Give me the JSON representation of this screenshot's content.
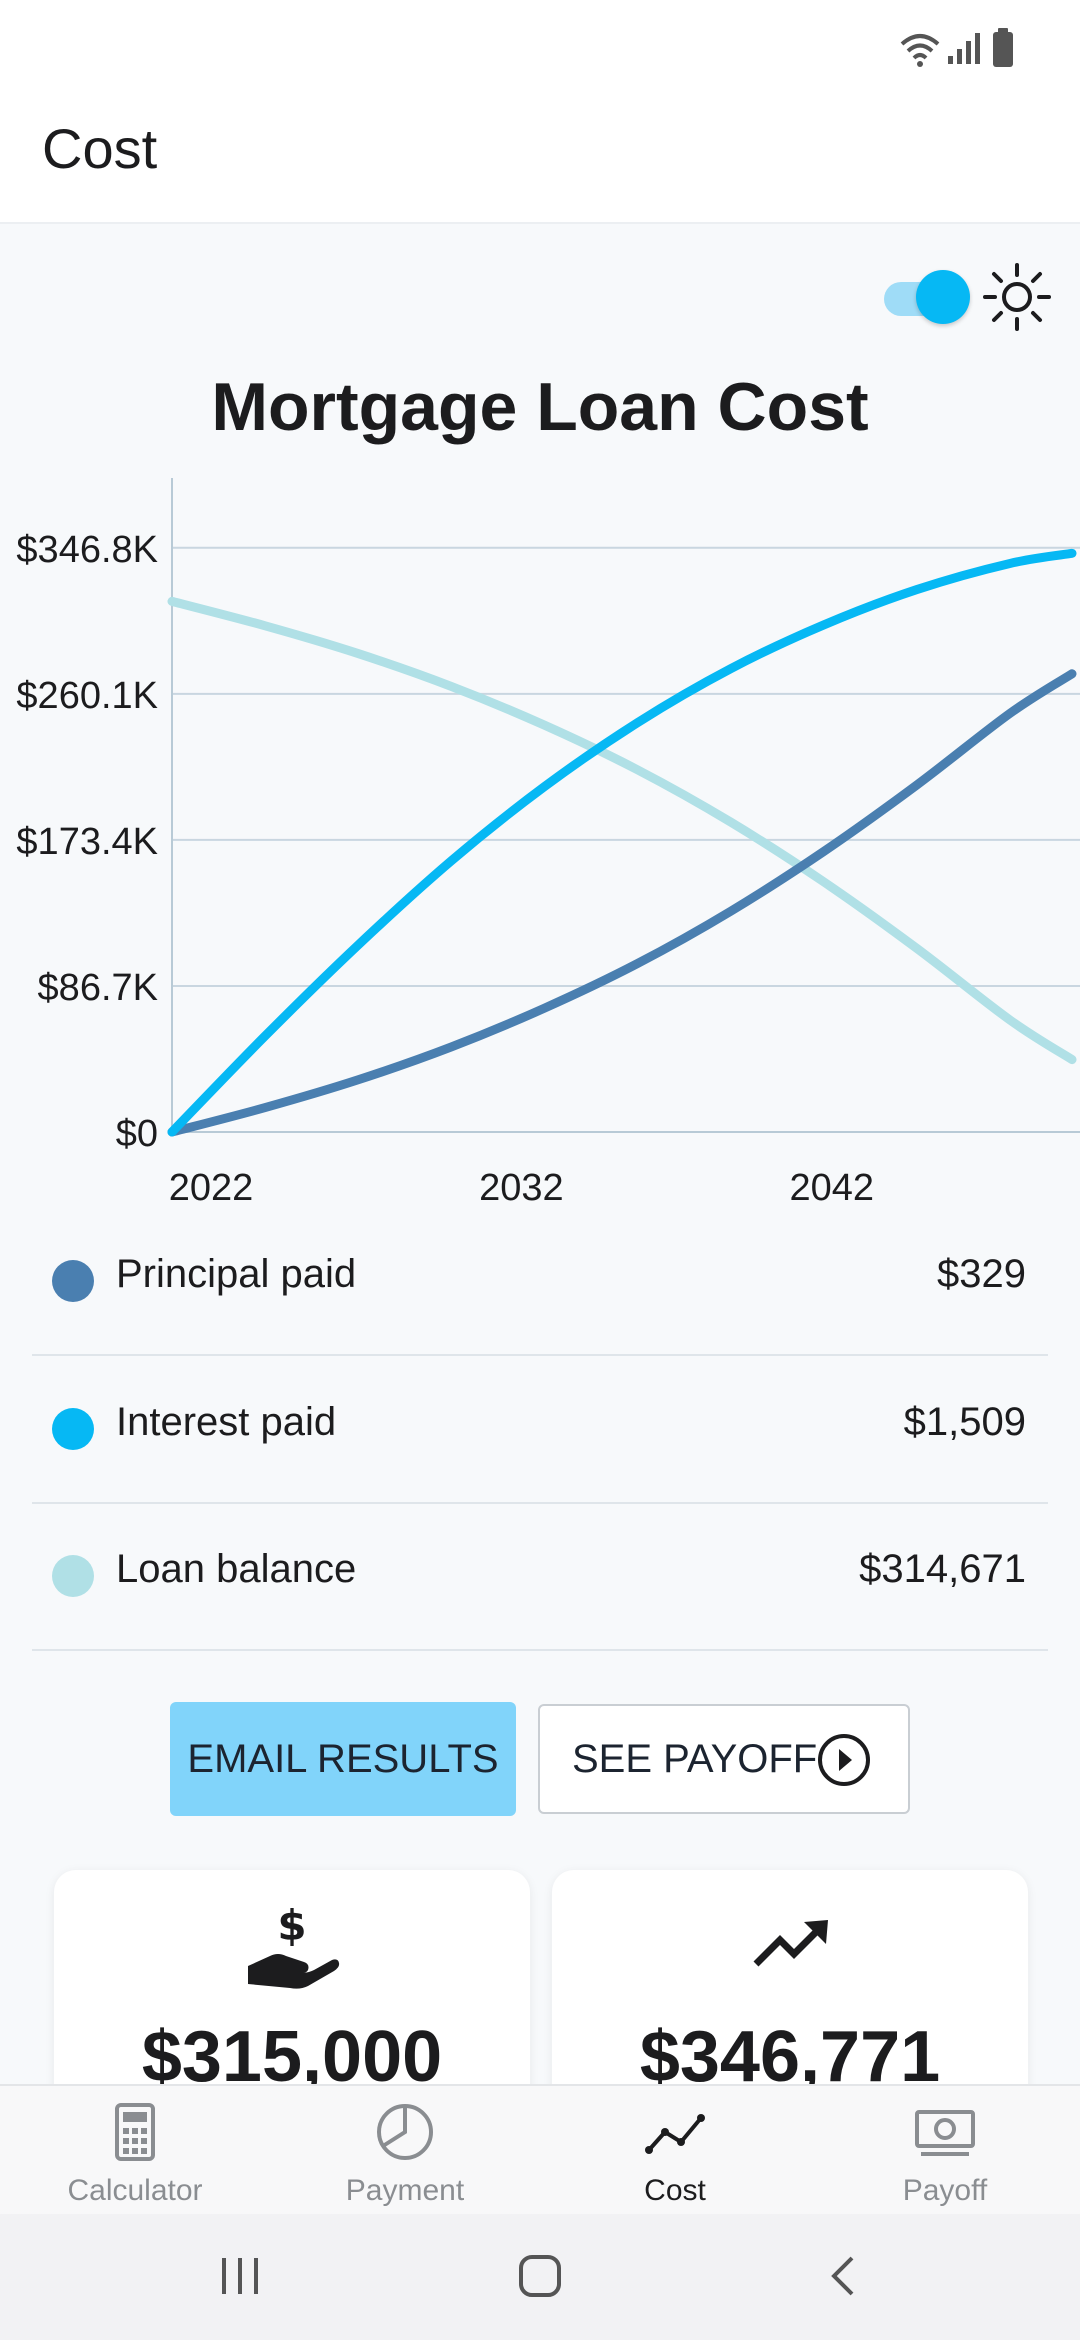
{
  "app_bar": {
    "title": "Cost"
  },
  "theme_toggle": {
    "on": true
  },
  "chart_title": "Mortgage Loan Cost",
  "chart_data": {
    "type": "line",
    "title": "Mortgage Loan Cost",
    "xlabel": "",
    "ylabel": "",
    "x_ticks": [
      "2022",
      "2032",
      "2042"
    ],
    "y_ticks": [
      "$0",
      "$86.7K",
      "$173.4K",
      "$260.1K",
      "$346.8K"
    ],
    "x": [
      2021,
      2024,
      2027,
      2030,
      2033,
      2036,
      2039,
      2042,
      2045,
      2048,
      2050
    ],
    "xlim": [
      2021,
      2050
    ],
    "ylim": [
      0,
      346800
    ],
    "grid": true,
    "series": [
      {
        "name": "Principal paid",
        "color": "#4a7fb0",
        "values": [
          0,
          14500,
          31000,
          50500,
          73500,
          100000,
          131000,
          166500,
          206000,
          248500,
          272000
        ]
      },
      {
        "name": "Interest paid",
        "color": "#06b8f4",
        "values": [
          0,
          57000,
          111000,
          161000,
          205000,
          243000,
          275000,
          301000,
          322000,
          337500,
          343500
        ]
      },
      {
        "name": "Loan balance",
        "color": "#b0e0e6",
        "values": [
          315000,
          300500,
          284000,
          264500,
          241500,
          215000,
          184000,
          148500,
          109000,
          66500,
          43000
        ]
      }
    ]
  },
  "legend": [
    {
      "label": "Principal paid",
      "value": "$329",
      "color": "#4a7fb0"
    },
    {
      "label": "Interest paid",
      "value": "$1,509",
      "color": "#06b8f4"
    },
    {
      "label": "Loan balance",
      "value": "$314,671",
      "color": "#b0e0e6"
    }
  ],
  "buttons": {
    "email": "EMAIL RESULTS",
    "payoff": "SEE PAYOFF"
  },
  "cards": [
    {
      "icon": "hand-dollar-icon",
      "value": "$315,000"
    },
    {
      "icon": "trending-up-icon",
      "value": "$346,771"
    }
  ],
  "nav": [
    {
      "label": "Calculator",
      "icon": "calculator-icon",
      "active": false
    },
    {
      "label": "Payment",
      "icon": "pie-chart-icon",
      "active": false
    },
    {
      "label": "Cost",
      "icon": "line-chart-icon",
      "active": true
    },
    {
      "label": "Payoff",
      "icon": "money-icon",
      "active": false
    }
  ]
}
